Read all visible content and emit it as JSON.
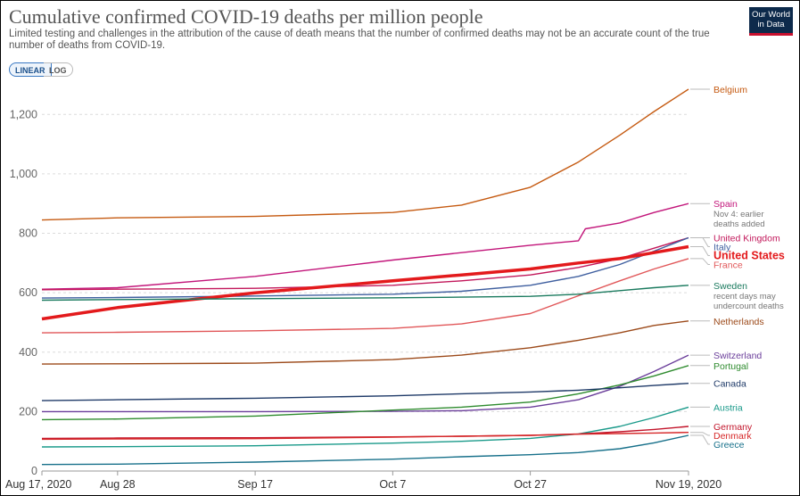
{
  "header": {
    "title": "Cumulative confirmed COVID-19 deaths per million people",
    "subtitle": "Limited testing and challenges in the attribution of the cause of death means that the number of confirmed deaths may not be an accurate count of the true number of deaths from COVID-19.",
    "logo_line1": "Our World",
    "logo_line2": "in Data"
  },
  "controls": {
    "linear_label": "LINEAR",
    "log_label": "LOG",
    "selected": "LINEAR"
  },
  "chart_data": {
    "type": "line",
    "title": "Cumulative confirmed COVID-19 deaths per million people",
    "xlabel": "",
    "ylabel": "",
    "ylim": [
      0,
      1300
    ],
    "yticks": [
      0,
      200,
      400,
      600,
      800,
      1000,
      1200
    ],
    "ytick_labels": [
      "0",
      "200",
      "400",
      "600",
      "800",
      "1,000",
      "1,200"
    ],
    "x_dates": [
      "2020-08-17",
      "2020-08-28",
      "2020-09-17",
      "2020-10-07",
      "2020-10-27",
      "2020-11-19"
    ],
    "xtick_labels": [
      "Aug 17, 2020",
      "Aug 28",
      "Sep 17",
      "Oct 7",
      "Oct 27",
      "Nov 19, 2020"
    ],
    "grid": "horizontal-dashed",
    "legend": "right-end labels",
    "series": [
      {
        "name": "Belgium",
        "color": "#c55a11",
        "dates": [
          "2020-08-17",
          "2020-08-28",
          "2020-09-17",
          "2020-10-07",
          "2020-10-17",
          "2020-10-27",
          "2020-11-03",
          "2020-11-09",
          "2020-11-14",
          "2020-11-19"
        ],
        "values": [
          845,
          852,
          857,
          870,
          895,
          955,
          1040,
          1130,
          1210,
          1285
        ]
      },
      {
        "name": "Spain",
        "note": "Nov 4: earlier deaths added",
        "color": "#c2157a",
        "dates": [
          "2020-08-17",
          "2020-08-28",
          "2020-09-17",
          "2020-10-07",
          "2020-10-17",
          "2020-10-27",
          "2020-11-03",
          "2020-11-04",
          "2020-11-09",
          "2020-11-14",
          "2020-11-19"
        ],
        "values": [
          612,
          617,
          655,
          710,
          735,
          760,
          775,
          815,
          835,
          870,
          900
        ]
      },
      {
        "name": "United Kingdom",
        "color": "#c2185b",
        "dates": [
          "2020-08-17",
          "2020-08-28",
          "2020-09-17",
          "2020-10-07",
          "2020-10-17",
          "2020-10-27",
          "2020-11-03",
          "2020-11-09",
          "2020-11-14",
          "2020-11-19"
        ],
        "values": [
          610,
          612,
          615,
          625,
          640,
          660,
          685,
          715,
          750,
          785
        ]
      },
      {
        "name": "Italy",
        "color": "#3f5f9f",
        "dates": [
          "2020-08-17",
          "2020-08-28",
          "2020-09-17",
          "2020-10-07",
          "2020-10-17",
          "2020-10-27",
          "2020-11-03",
          "2020-11-09",
          "2020-11-14",
          "2020-11-19"
        ],
        "values": [
          582,
          584,
          589,
          595,
          605,
          625,
          655,
          695,
          740,
          785
        ]
      },
      {
        "name": "United States",
        "color": "#e31a1c",
        "dates": [
          "2020-08-17",
          "2020-08-28",
          "2020-09-17",
          "2020-10-07",
          "2020-10-17",
          "2020-10-27",
          "2020-11-03",
          "2020-11-09",
          "2020-11-14",
          "2020-11-19"
        ],
        "values": [
          512,
          550,
          600,
          640,
          660,
          680,
          700,
          715,
          735,
          755
        ]
      },
      {
        "name": "France",
        "color": "#e15759",
        "dates": [
          "2020-08-17",
          "2020-08-28",
          "2020-09-17",
          "2020-10-07",
          "2020-10-17",
          "2020-10-27",
          "2020-11-03",
          "2020-11-09",
          "2020-11-14",
          "2020-11-19"
        ],
        "values": [
          465,
          467,
          472,
          480,
          495,
          530,
          590,
          640,
          680,
          715
        ]
      },
      {
        "name": "Sweden",
        "note": "recent days may undercount deaths",
        "color": "#1a7a5e",
        "dates": [
          "2020-08-17",
          "2020-08-28",
          "2020-09-17",
          "2020-10-07",
          "2020-10-17",
          "2020-10-27",
          "2020-11-03",
          "2020-11-09",
          "2020-11-14",
          "2020-11-19"
        ],
        "values": [
          575,
          577,
          580,
          583,
          585,
          588,
          595,
          607,
          617,
          625
        ]
      },
      {
        "name": "Netherlands",
        "color": "#9c4a1a",
        "dates": [
          "2020-08-17",
          "2020-08-28",
          "2020-09-17",
          "2020-10-07",
          "2020-10-17",
          "2020-10-27",
          "2020-11-03",
          "2020-11-09",
          "2020-11-14",
          "2020-11-19"
        ],
        "values": [
          360,
          361,
          363,
          375,
          390,
          415,
          440,
          465,
          490,
          505
        ]
      },
      {
        "name": "Switzerland",
        "color": "#6a3d9a",
        "dates": [
          "2020-08-17",
          "2020-08-28",
          "2020-09-17",
          "2020-10-07",
          "2020-10-17",
          "2020-10-27",
          "2020-11-03",
          "2020-11-09",
          "2020-11-14",
          "2020-11-19"
        ],
        "values": [
          200,
          200,
          200,
          201,
          203,
          215,
          240,
          285,
          335,
          390
        ]
      },
      {
        "name": "Portugal",
        "color": "#2e8b2e",
        "dates": [
          "2020-08-17",
          "2020-08-28",
          "2020-09-17",
          "2020-10-07",
          "2020-10-17",
          "2020-10-27",
          "2020-11-03",
          "2020-11-09",
          "2020-11-14",
          "2020-11-19"
        ],
        "values": [
          173,
          175,
          185,
          205,
          215,
          232,
          260,
          290,
          320,
          355
        ]
      },
      {
        "name": "Canada",
        "color": "#1f3a68",
        "dates": [
          "2020-08-17",
          "2020-08-28",
          "2020-09-17",
          "2020-10-07",
          "2020-10-17",
          "2020-10-27",
          "2020-11-03",
          "2020-11-09",
          "2020-11-14",
          "2020-11-19"
        ],
        "values": [
          237,
          240,
          245,
          253,
          260,
          266,
          272,
          280,
          288,
          295
        ]
      },
      {
        "name": "Austria",
        "color": "#1a9a8a",
        "dates": [
          "2020-08-17",
          "2020-08-28",
          "2020-09-17",
          "2020-10-07",
          "2020-10-17",
          "2020-10-27",
          "2020-11-03",
          "2020-11-09",
          "2020-11-14",
          "2020-11-19"
        ],
        "values": [
          81,
          82,
          85,
          94,
          100,
          110,
          125,
          150,
          180,
          215
        ]
      },
      {
        "name": "Germany",
        "color": "#c2142a",
        "dates": [
          "2020-08-17",
          "2020-08-28",
          "2020-09-17",
          "2020-10-07",
          "2020-10-17",
          "2020-10-27",
          "2020-11-03",
          "2020-11-09",
          "2020-11-14",
          "2020-11-19"
        ],
        "values": [
          110,
          111,
          112,
          115,
          117,
          120,
          125,
          132,
          140,
          150
        ]
      },
      {
        "name": "Denmark",
        "color": "#d62728",
        "dates": [
          "2020-08-17",
          "2020-08-28",
          "2020-09-17",
          "2020-10-07",
          "2020-10-17",
          "2020-10-27",
          "2020-11-03",
          "2020-11-09",
          "2020-11-14",
          "2020-11-19"
        ],
        "values": [
          107,
          108,
          109,
          114,
          117,
          120,
          124,
          126,
          128,
          130
        ]
      },
      {
        "name": "Greece",
        "color": "#17708a",
        "dates": [
          "2020-08-17",
          "2020-08-28",
          "2020-09-17",
          "2020-10-07",
          "2020-10-17",
          "2020-10-27",
          "2020-11-03",
          "2020-11-09",
          "2020-11-14",
          "2020-11-19"
        ],
        "values": [
          22,
          23,
          30,
          40,
          48,
          55,
          62,
          75,
          95,
          120
        ]
      }
    ]
  }
}
